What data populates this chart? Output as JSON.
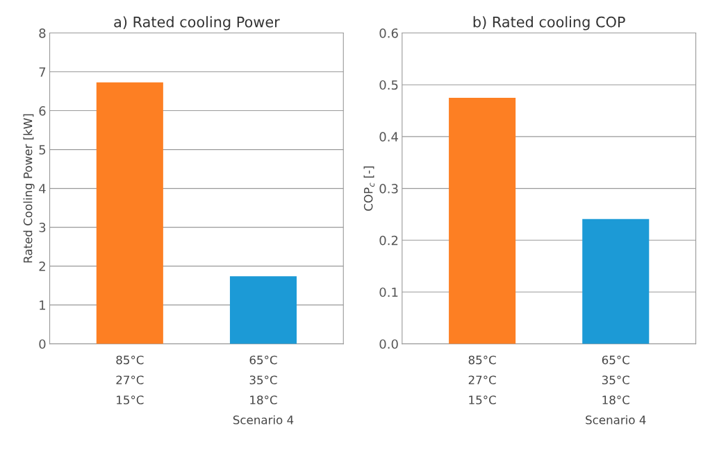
{
  "chart_data": [
    {
      "type": "bar",
      "title": "a) Rated cooling Power",
      "ylabel": "Rated Cooling Power [kW]",
      "categories": [
        "85°C\n27°C\n15°C",
        "65°C\n35°C\n18°C\nScenario 4"
      ],
      "values": [
        6.73,
        1.74
      ],
      "colors": [
        "#fd7f23",
        "#1c9ad6"
      ],
      "ylim": [
        0,
        8
      ],
      "yticks": [
        0,
        1,
        2,
        3,
        4,
        5,
        6,
        7,
        8
      ],
      "grid": "y"
    },
    {
      "type": "bar",
      "title": "b) Rated cooling COP",
      "ylabel": "COP$_{c}$ [-]",
      "categories": [
        "85°C\n27°C\n15°C",
        "65°C\n35°C\n18°C\nScenario 4"
      ],
      "values": [
        0.475,
        0.241
      ],
      "colors": [
        "#fd7f23",
        "#1c9ad6"
      ],
      "ylim": [
        0,
        0.6
      ],
      "yticks": [
        {
          "value": 0,
          "label": "0.0"
        },
        0.1,
        0.2,
        0.3,
        0.4,
        0.5,
        0.6
      ],
      "grid": "y"
    }
  ]
}
